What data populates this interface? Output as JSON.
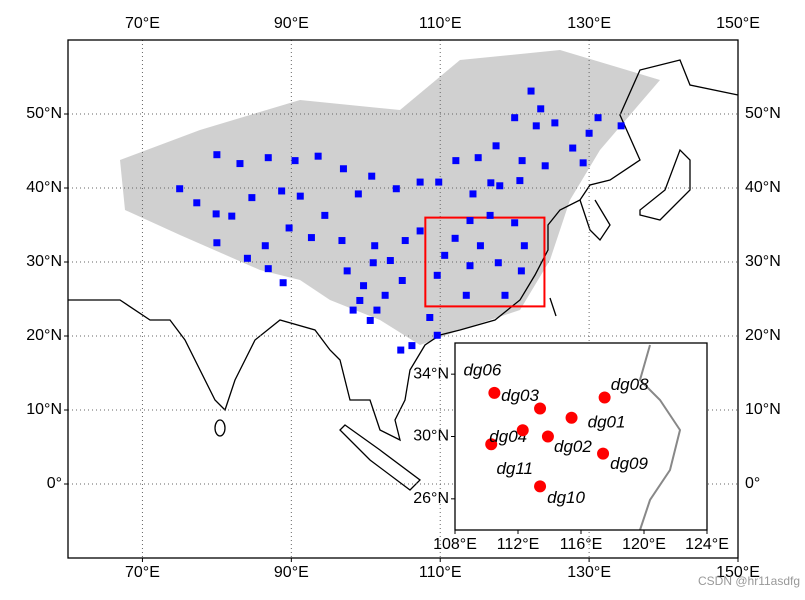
{
  "chart_data": [
    {
      "type": "scatter",
      "marker": "square",
      "color": "#0000ff",
      "x": [
        122.2,
        123.5,
        120.0,
        130.0,
        134.3,
        131.2,
        125.4,
        122.9,
        127.8,
        129.2,
        124.1,
        121.0,
        117.5,
        115.1,
        112.1,
        109.8,
        107.3,
        104.1,
        100.8,
        99.0,
        97.0,
        93.6,
        90.5,
        86.9,
        83.1,
        80.0,
        75.0,
        77.3,
        79.9,
        82.0,
        84.7,
        88.7,
        91.2,
        94.5,
        96.8,
        92.7,
        89.7,
        86.5,
        84.1,
        80.0,
        88.9,
        86.9,
        97.5,
        99.2,
        100.6,
        102.6,
        104.9,
        103.3,
        101.2,
        105.3,
        107.3,
        112.0,
        114.0,
        116.7,
        120.0,
        118.0,
        120.7,
        110.6,
        114.0,
        117.8,
        120.9,
        109.6,
        113.5,
        118.7,
        108.6,
        106.2,
        109.6,
        104.7,
        101.0,
        99.7,
        101.5,
        98.3,
        114.4,
        116.8,
        121.3,
        115.4
      ],
      "values": [
        53.1,
        50.7,
        49.5,
        47.4,
        48.4,
        49.5,
        48.8,
        48.4,
        45.4,
        43.4,
        43.0,
        43.7,
        45.7,
        44.1,
        43.7,
        40.8,
        40.8,
        39.9,
        41.6,
        39.2,
        42.6,
        44.3,
        43.7,
        44.1,
        43.3,
        44.5,
        39.9,
        38.0,
        36.5,
        36.2,
        38.7,
        39.6,
        38.9,
        36.3,
        32.9,
        33.3,
        34.6,
        32.2,
        30.5,
        32.6,
        27.2,
        29.1,
        28.8,
        24.8,
        22.1,
        25.5,
        27.5,
        30.2,
        32.2,
        32.9,
        34.2,
        33.2,
        35.6,
        36.3,
        35.3,
        40.3,
        41.0,
        30.9,
        29.5,
        29.9,
        28.8,
        28.2,
        25.5,
        25.5,
        22.5,
        18.7,
        20.1,
        18.1,
        29.9,
        26.8,
        23.5,
        23.5,
        39.2,
        40.7,
        32.2,
        32.2
      ],
      "xlim": [
        60,
        150
      ],
      "ylim": [
        -10,
        60
      ],
      "xticks": [
        {
          "value": 70,
          "label": "70°E"
        },
        {
          "value": 90,
          "label": "90°E"
        },
        {
          "value": 110,
          "label": "110°E"
        },
        {
          "value": 130,
          "label": "130°E"
        },
        {
          "value": 150,
          "label": "150°E"
        }
      ],
      "yticks": [
        {
          "value": 0,
          "label": "0°"
        },
        {
          "value": 10,
          "label": "10°N"
        },
        {
          "value": 20,
          "label": "20°N"
        },
        {
          "value": 30,
          "label": "30°N"
        },
        {
          "value": 40,
          "label": "40°N"
        },
        {
          "value": 50,
          "label": "50°N"
        }
      ],
      "grid": true,
      "highlight_box": {
        "xlim": [
          108,
          124
        ],
        "ylim": [
          24,
          36
        ],
        "color": "#ff0000"
      }
    },
    {
      "type": "scatter",
      "marker": "circle",
      "color": "#ff0000",
      "labels": [
        "dg06",
        "dg03",
        "dg08",
        "dg01",
        "dg04",
        "dg11",
        "dg02",
        "dg09",
        "dg10"
      ],
      "x": [
        110.5,
        113.4,
        117.5,
        115.4,
        110.3,
        112.3,
        113.9,
        117.4,
        113.4
      ],
      "values": [
        32.8,
        31.8,
        32.5,
        31.2,
        29.5,
        30.4,
        30.0,
        28.9,
        26.8
      ],
      "xlim": [
        108,
        124
      ],
      "ylim": [
        24,
        36
      ],
      "xticks": [
        {
          "value": 108,
          "label": "108°E"
        },
        {
          "value": 112,
          "label": "112°E"
        },
        {
          "value": 116,
          "label": "116°E"
        },
        {
          "value": 120,
          "label": "120°E"
        },
        {
          "value": 124,
          "label": "124°E"
        }
      ],
      "yticks": [
        {
          "value": 26,
          "label": "26°N"
        },
        {
          "value": 30,
          "label": "30°N"
        },
        {
          "value": 34,
          "label": "34°N"
        }
      ],
      "grid": false
    }
  ],
  "watermark": "CSDN @hr11asdfg"
}
